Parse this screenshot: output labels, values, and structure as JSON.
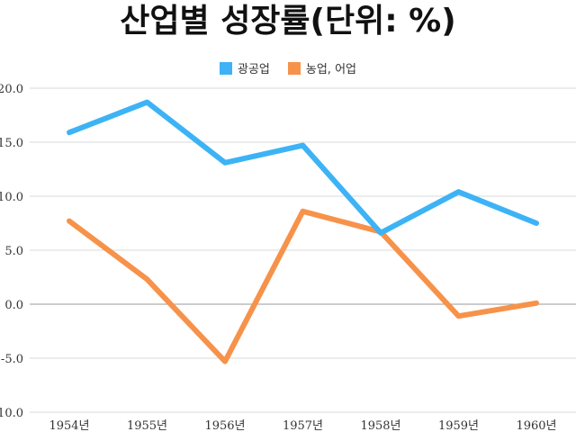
{
  "chart_data": {
    "type": "line",
    "title": "산업별 성장률(단위: %)",
    "categories": [
      "1954년",
      "1955년",
      "1956년",
      "1957년",
      "1958년",
      "1959년",
      "1960년"
    ],
    "series": [
      {
        "name": "광공업",
        "color": "#3db3f5",
        "values": [
          15.9,
          18.7,
          13.1,
          14.7,
          6.6,
          10.4,
          7.5
        ]
      },
      {
        "name": "농업, 어업",
        "color": "#f7924a",
        "values": [
          7.7,
          2.3,
          -5.3,
          8.6,
          6.7,
          -1.1,
          0.1
        ]
      }
    ],
    "ylim": [
      -10,
      20
    ],
    "yticks": [
      "-10.0",
      "-5.0",
      "0.0",
      "5.0",
      "10.0",
      "15.0",
      "20.0"
    ],
    "grid": true,
    "legend": "top"
  }
}
